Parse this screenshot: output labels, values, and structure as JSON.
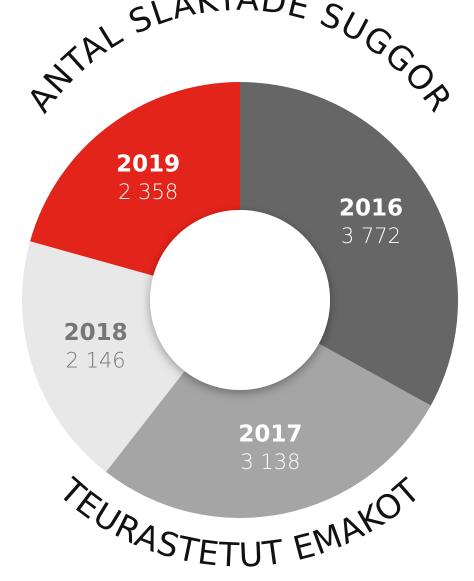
{
  "chart_data": {
    "type": "donut",
    "title": "ANTAL SLAKTADE SUGGOR",
    "subtitle": "TEURASTETUT EMAKOT",
    "categories": [
      "2016",
      "2017",
      "2018",
      "2019"
    ],
    "values": [
      3772,
      3138,
      2146,
      2358
    ],
    "value_labels": [
      "3 772",
      "3 138",
      "2 146",
      "2 358"
    ],
    "colors": [
      "#666666",
      "#a5a5a5",
      "#e8e8e8",
      "#e3241b"
    ],
    "label_colors": [
      "#ffffff",
      "#ffffff",
      "#777777",
      "#ffffff"
    ]
  }
}
